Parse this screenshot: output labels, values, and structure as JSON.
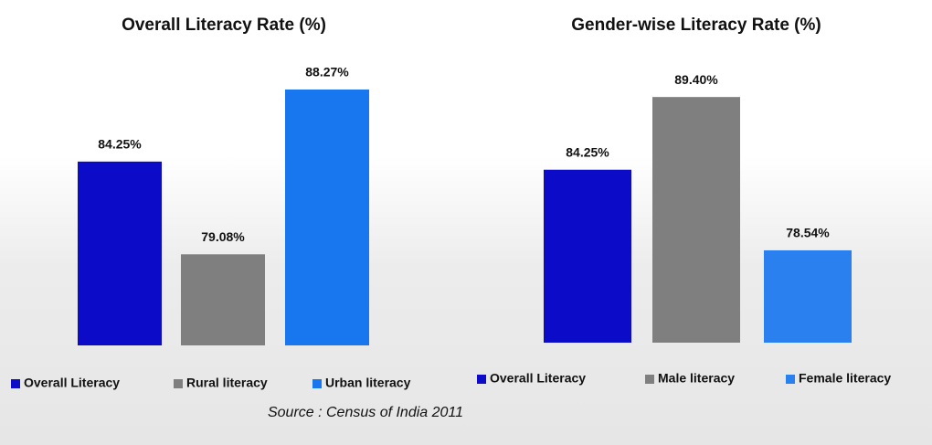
{
  "chart_data": [
    {
      "type": "bar",
      "title": "Overall Literacy Rate (%)",
      "categories": [
        "Overall Literacy",
        "Rural literacy",
        "Urban literacy"
      ],
      "values": [
        84.25,
        79.08,
        88.27
      ],
      "value_labels": [
        "84.25%",
        "79.08%",
        "88.27%"
      ],
      "colors": [
        "#0b0bc8",
        "#7f7f7f",
        "#1877ee"
      ],
      "ylim": [
        74,
        90
      ]
    },
    {
      "type": "bar",
      "title": "Gender-wise Literacy Rate (%)",
      "categories": [
        "Overall Literacy",
        "Male literacy",
        "Female literacy"
      ],
      "values": [
        84.25,
        89.4,
        78.54
      ],
      "value_labels": [
        "84.25%",
        "89.40%",
        "78.54%"
      ],
      "colors": [
        "#0b0bc8",
        "#7f7f7f",
        "#2a80ee"
      ],
      "ylim": [
        72,
        92
      ]
    }
  ],
  "source": "Source : Census of India 2011"
}
